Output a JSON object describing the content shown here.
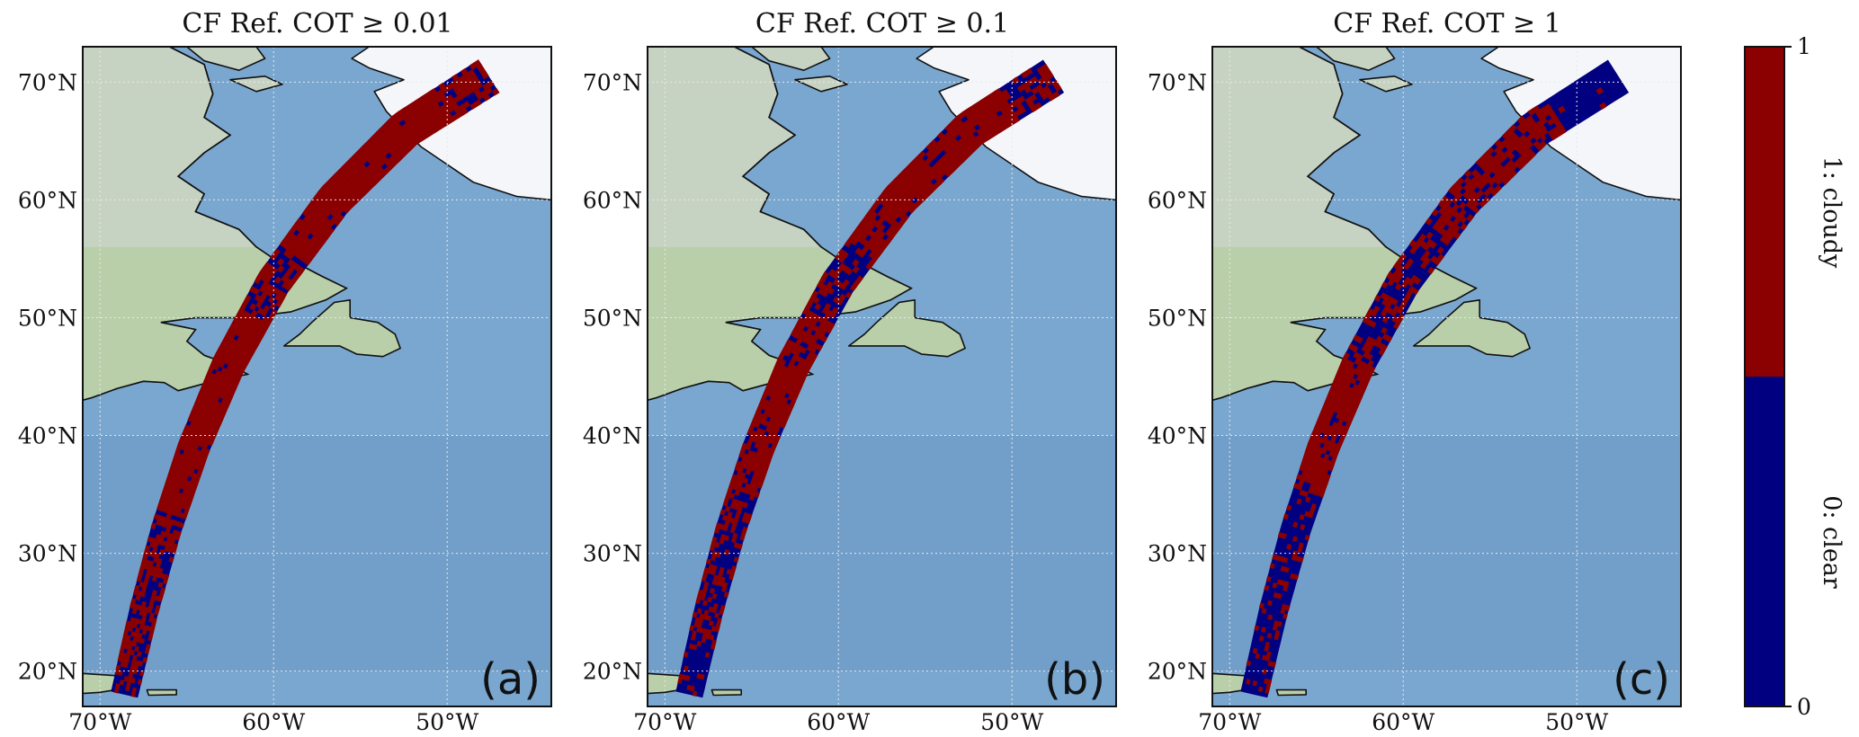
{
  "chart_data": {
    "type": "heatmap",
    "figure_type": "map panels with categorical swath overlay",
    "lon_range": [
      -71,
      -44
    ],
    "lat_range": [
      17,
      73
    ],
    "lat_ticks": [
      {
        "value": 20,
        "label": "20°N"
      },
      {
        "value": 30,
        "label": "30°N"
      },
      {
        "value": 40,
        "label": "40°N"
      },
      {
        "value": 50,
        "label": "50°N"
      },
      {
        "value": 60,
        "label": "60°N"
      },
      {
        "value": 70,
        "label": "70°N"
      }
    ],
    "lon_ticks": [
      {
        "value": -70,
        "label": "70°W"
      },
      {
        "value": -60,
        "label": "60°W"
      },
      {
        "value": -50,
        "label": "50°W"
      }
    ],
    "grid": true,
    "swath_centerline": [
      {
        "lon": -68.6,
        "lat": 18.0
      },
      {
        "lon": -67.5,
        "lat": 25.0
      },
      {
        "lon": -66.2,
        "lat": 32.0
      },
      {
        "lon": -64.6,
        "lat": 39.0
      },
      {
        "lon": -62.6,
        "lat": 46.0
      },
      {
        "lon": -60.0,
        "lat": 53.0
      },
      {
        "lon": -56.5,
        "lat": 60.0
      },
      {
        "lon": -52.4,
        "lat": 66.0
      },
      {
        "lon": -47.6,
        "lat": 70.5
      }
    ],
    "panels": [
      {
        "label": "(a)",
        "title": "CF Ref.  COT ≥ 0.01",
        "cloudy_mask": [
          {
            "lat": [
              18,
              20
            ],
            "frac": 0.4
          },
          {
            "lat": [
              20,
              33
            ],
            "frac": 0.55
          },
          {
            "lat": [
              33,
              50
            ],
            "frac": 0.95
          },
          {
            "lat": [
              50,
              55
            ],
            "frac": 0.6
          },
          {
            "lat": [
              55,
              68
            ],
            "frac": 0.97
          },
          {
            "lat": [
              68,
              73
            ],
            "frac": 0.7
          }
        ]
      },
      {
        "label": "(b)",
        "title": "CF Ref.  COT ≥ 0.1",
        "cloudy_mask": [
          {
            "lat": [
              18,
              22
            ],
            "frac": 0.2
          },
          {
            "lat": [
              22,
              35
            ],
            "frac": 0.45
          },
          {
            "lat": [
              35,
              50
            ],
            "frac": 0.85
          },
          {
            "lat": [
              50,
              56
            ],
            "frac": 0.45
          },
          {
            "lat": [
              56,
              68
            ],
            "frac": 0.9
          },
          {
            "lat": [
              68,
              73
            ],
            "frac": 0.55
          }
        ]
      },
      {
        "label": "(c)",
        "title": "CF Ref.  COT ≥ 1",
        "cloudy_mask": [
          {
            "lat": [
              18,
              35
            ],
            "frac": 0.2
          },
          {
            "lat": [
              35,
              46
            ],
            "frac": 0.85
          },
          {
            "lat": [
              46,
              57
            ],
            "frac": 0.35
          },
          {
            "lat": [
              57,
              67
            ],
            "frac": 0.7
          },
          {
            "lat": [
              67,
              73
            ],
            "frac": 0.05
          }
        ]
      }
    ],
    "colorbar": {
      "min_label": "0",
      "max_label": "1",
      "categories": [
        {
          "value": 0,
          "label": "0: clear",
          "color": "#000080"
        },
        {
          "value": 1,
          "label": "1: cloudy",
          "color": "#8b0000"
        }
      ]
    }
  },
  "colors": {
    "ocean": "#7aa7d0",
    "ocean_dark": "#6a97c4",
    "land": "#b9cfa9",
    "land_light": "#c7d3c2",
    "ice": "#f4f6fa",
    "coast": "#111111",
    "grid": "#e8e8e8",
    "cloudy": "#8b0000",
    "clear": "#000080"
  }
}
